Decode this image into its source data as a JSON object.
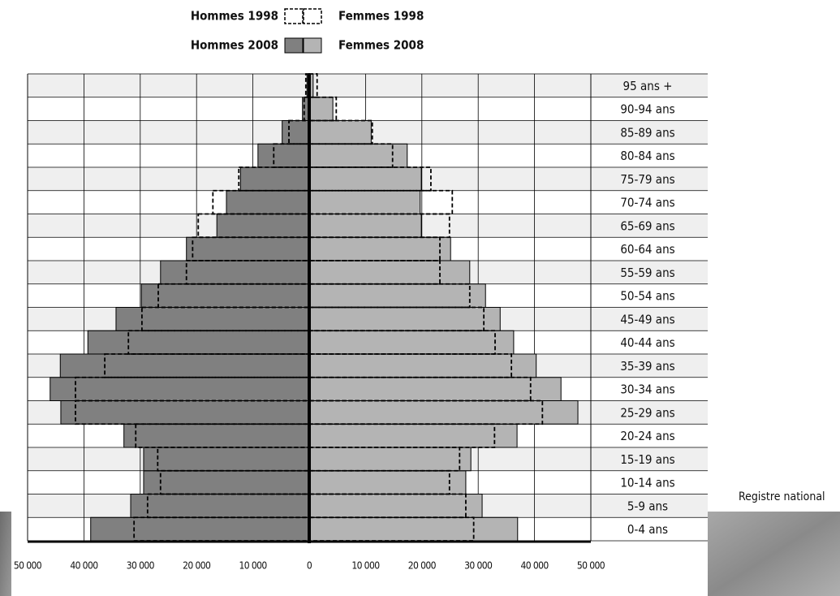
{
  "chart_data": {
    "type": "pyramid",
    "categories": [
      "0-4 ans",
      "5-9 ans",
      "10-14 ans",
      "15-19 ans",
      "20-24 ans",
      "25-29 ans",
      "30-34 ans",
      "35-39 ans",
      "40-44 ans",
      "45-49 ans",
      "50-54 ans",
      "55-59 ans",
      "60-64 ans",
      "65-69 ans",
      "70-74 ans",
      "75-79 ans",
      "80-84 ans",
      "85-89 ans",
      "90-94 ans",
      "95 ans +"
    ],
    "series": [
      {
        "name": "Hommes 2008",
        "color": "#808080",
        "side": "left",
        "style": "solid",
        "values": [
          38800,
          31700,
          29400,
          29400,
          32900,
          44100,
          46000,
          44200,
          39300,
          34300,
          29800,
          26400,
          21800,
          16400,
          14700,
          12200,
          9100,
          4800,
          1200,
          400
        ]
      },
      {
        "name": "Femmes 2008",
        "color": "#b4b4b4",
        "side": "right",
        "style": "solid",
        "values": [
          37000,
          30700,
          27800,
          28700,
          36900,
          47700,
          44700,
          40300,
          36300,
          33900,
          31300,
          28500,
          25100,
          19900,
          19700,
          19900,
          17400,
          11000,
          4200,
          700
        ]
      },
      {
        "name": "Hommes 1998",
        "color": "#000000",
        "side": "left",
        "style": "dashed",
        "values": [
          31100,
          28700,
          26400,
          26900,
          30800,
          41500,
          41500,
          36300,
          32100,
          29700,
          26800,
          21800,
          20700,
          19700,
          17100,
          12500,
          6300,
          3600,
          900,
          600
        ]
      },
      {
        "name": "Femmes 1998",
        "color": "#000000",
        "side": "right",
        "style": "dashed",
        "values": [
          29200,
          27800,
          24900,
          26700,
          32900,
          41400,
          39300,
          35900,
          33000,
          31000,
          28500,
          23200,
          23200,
          24900,
          25400,
          21600,
          14800,
          11200,
          4800,
          1400
        ]
      }
    ],
    "xlim": [
      -50000,
      50000
    ],
    "xticks": [
      {
        "value": -50000,
        "label": "50 000"
      },
      {
        "value": -40000,
        "label": "40 000"
      },
      {
        "value": -30000,
        "label": "30 000"
      },
      {
        "value": -20000,
        "label": "20 000"
      },
      {
        "value": -10000,
        "label": "10 000"
      },
      0,
      {
        "value": 10000,
        "label": "10 000"
      },
      {
        "value": 20000,
        "label": "20 000"
      },
      {
        "value": 30000,
        "label": "30 000"
      },
      {
        "value": 40000,
        "label": "40 000"
      },
      {
        "value": 50000,
        "label": "50 000"
      }
    ],
    "grid": true,
    "annotation": "Registre national"
  }
}
